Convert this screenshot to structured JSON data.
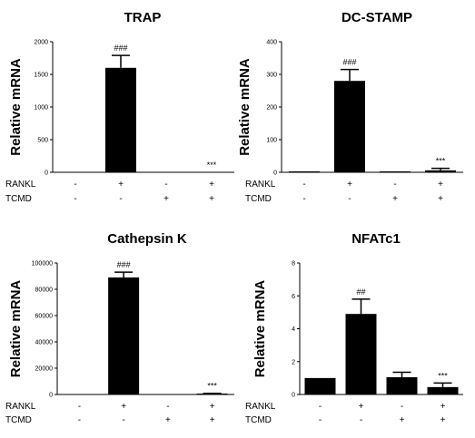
{
  "chart_data": [
    {
      "type": "bar",
      "title": "TRAP",
      "ylabel": "Relative mRNA",
      "ylim": [
        0,
        2000
      ],
      "yticks": [
        "0",
        "500",
        "1000",
        "1500",
        "2000"
      ],
      "yticks_values": [
        0,
        500,
        1000,
        1500,
        2000
      ],
      "values": [
        0,
        1600,
        0,
        0
      ],
      "errors": [
        0,
        190,
        0,
        0
      ],
      "significance": [
        "",
        "###",
        "",
        "***"
      ]
    },
    {
      "type": "bar",
      "title": "DC-STAMP",
      "ylabel": "Relative mRNA",
      "ylim": [
        0,
        400
      ],
      "yticks": [
        "0",
        "100",
        "200",
        "300",
        "400"
      ],
      "yticks_values": [
        0,
        100,
        200,
        300,
        400
      ],
      "values": [
        1,
        280,
        1,
        6
      ],
      "errors": [
        0,
        35,
        0,
        6
      ],
      "significance": [
        "",
        "###",
        "",
        "***"
      ]
    },
    {
      "type": "bar",
      "title": "Cathepsin K",
      "ylabel": "Relative mRNA",
      "ylim": [
        0,
        100000
      ],
      "yticks": [
        "0",
        "20000",
        "40000",
        "60000",
        "80000",
        "100000"
      ],
      "yticks_values": [
        0,
        20000,
        40000,
        60000,
        80000,
        100000
      ],
      "values": [
        0,
        89000,
        0,
        600
      ],
      "errors": [
        0,
        4000,
        0,
        300
      ],
      "significance": [
        "",
        "###",
        "",
        "***"
      ]
    },
    {
      "type": "bar",
      "title": "NFATc1",
      "ylabel": "Relative mRNA",
      "ylim": [
        0,
        8
      ],
      "yticks": [
        "0",
        "2",
        "4",
        "6",
        "8"
      ],
      "yticks_values": [
        0,
        2,
        4,
        6,
        8
      ],
      "values": [
        1,
        4.9,
        1.05,
        0.45
      ],
      "errors": [
        0,
        0.9,
        0.3,
        0.25
      ],
      "significance": [
        "",
        "##",
        "",
        "***"
      ]
    }
  ],
  "conditions": {
    "rows": [
      {
        "label": "RANKL",
        "signs": [
          "-",
          "+",
          "-",
          "+"
        ]
      },
      {
        "label": "TCMD",
        "signs": [
          "-",
          "-",
          "+",
          "+"
        ]
      }
    ]
  }
}
